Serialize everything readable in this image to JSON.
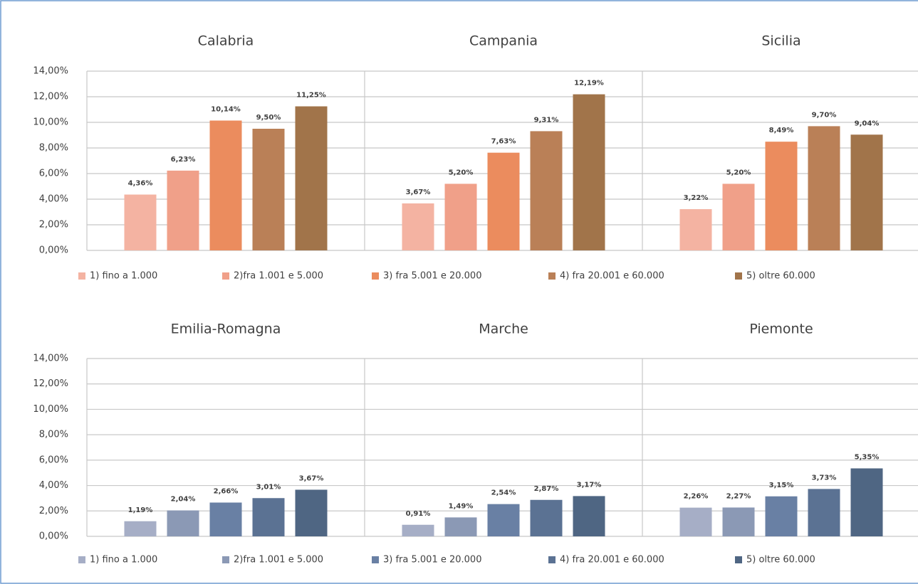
{
  "chart_data": [
    {
      "type": "bar",
      "categories": [
        "Calabria",
        "Campania",
        "Sicilia"
      ],
      "series": [
        {
          "name": "1) fino a 1.000",
          "color": "#f4b3a2",
          "values": [
            4.36,
            3.67,
            3.22
          ],
          "value_labels": [
            "4,36%",
            "3,67%",
            "3,22%"
          ]
        },
        {
          "name": "2)fra 1.001 e 5.000",
          "color": "#f0a089",
          "values": [
            6.23,
            5.2,
            5.2
          ],
          "value_labels": [
            "6,23%",
            "5,20%",
            "5,20%"
          ]
        },
        {
          "name": "3) fra 5.001 e 20.000",
          "color": "#eb8c5e",
          "values": [
            10.14,
            7.63,
            8.49
          ],
          "value_labels": [
            "10,14%",
            "7,63%",
            "8,49%"
          ]
        },
        {
          "name": "4) fra 20.001 e 60.000",
          "color": "#ba8057",
          "values": [
            9.5,
            9.31,
            9.7
          ],
          "value_labels": [
            "9,50%",
            "9,31%",
            "9,70%"
          ]
        },
        {
          "name": "5) oltre 60.000",
          "color": "#a1744a",
          "values": [
            11.25,
            12.19,
            9.04
          ],
          "value_labels": [
            "11,25%",
            "12,19%",
            "9,04%"
          ]
        }
      ],
      "ylim": [
        0,
        14
      ],
      "yticks": [
        {
          "value": 0,
          "label": "0,00%"
        },
        {
          "value": 2,
          "label": "2,00%"
        },
        {
          "value": 4,
          "label": "4,00%"
        },
        {
          "value": 6,
          "label": "6,00%"
        },
        {
          "value": 8,
          "label": "8,00%"
        },
        {
          "value": 10,
          "label": "10,00%"
        },
        {
          "value": 12,
          "label": "12,00%"
        },
        {
          "value": 14,
          "label": "14,00%"
        }
      ],
      "grid": true
    },
    {
      "type": "bar",
      "categories": [
        "Emilia-Romagna",
        "Marche",
        "Piemonte"
      ],
      "series": [
        {
          "name": "1) fino a 1.000",
          "color": "#a6aec6",
          "values": [
            1.19,
            0.91,
            2.26
          ],
          "value_labels": [
            "1,19%",
            "0,91%",
            "2,26%"
          ]
        },
        {
          "name": "2)fra 1.001 e 5.000",
          "color": "#8b99b5",
          "values": [
            2.04,
            1.49,
            2.27
          ],
          "value_labels": [
            "2,04%",
            "1,49%",
            "2,27%"
          ]
        },
        {
          "name": "3) fra 5.001 e 20.000",
          "color": "#6980a4",
          "values": [
            2.66,
            2.54,
            3.15
          ],
          "value_labels": [
            "2,66%",
            "2,54%",
            "3,15%"
          ]
        },
        {
          "name": "4) fra 20.001 e 60.000",
          "color": "#5b7293",
          "values": [
            3.01,
            2.87,
            3.73
          ],
          "value_labels": [
            "3,01%",
            "2,87%",
            "3,73%"
          ]
        },
        {
          "name": "5) oltre 60.000",
          "color": "#4f6683",
          "values": [
            3.67,
            3.17,
            5.35
          ],
          "value_labels": [
            "3,67%",
            "3,17%",
            "5,35%"
          ]
        }
      ],
      "ylim": [
        0,
        14
      ],
      "yticks": [
        {
          "value": 0,
          "label": "0,00%"
        },
        {
          "value": 2,
          "label": "2,00%"
        },
        {
          "value": 4,
          "label": "4,00%"
        },
        {
          "value": 6,
          "label": "6,00%"
        },
        {
          "value": 8,
          "label": "8,00%"
        },
        {
          "value": 10,
          "label": "10,00%"
        },
        {
          "value": 12,
          "label": "12,00%"
        },
        {
          "value": 14,
          "label": "14,00%"
        }
      ],
      "grid": true
    }
  ]
}
